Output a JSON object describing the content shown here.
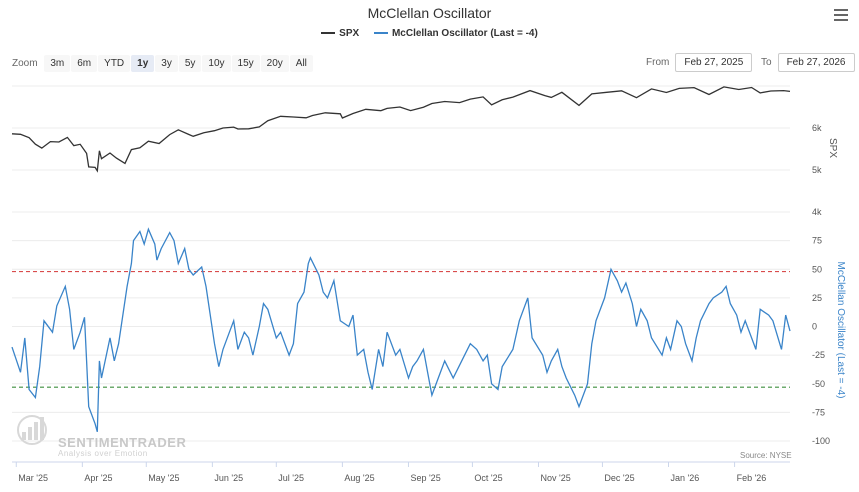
{
  "title": "McClellan Oscillator",
  "legend": {
    "spx_label": "SPX",
    "osc_label": "McClellan Oscillator (Last = -4)"
  },
  "zoom": {
    "label": "Zoom",
    "buttons": [
      "3m",
      "6m",
      "YTD",
      "1y",
      "3y",
      "5y",
      "10y",
      "15y",
      "20y",
      "All"
    ],
    "active": "1y"
  },
  "range": {
    "from_label": "From",
    "from_value": "Feb 27, 2025",
    "to_label": "To",
    "to_value": "Feb 27, 2026"
  },
  "credit": "Source: NYSE",
  "watermark": {
    "name": "SENTIMENTRADER",
    "tagline": "Analysis over Emotion"
  },
  "colors": {
    "spx": "#333333",
    "oscillator": "#3a84c9",
    "overbought": "#d94c4c",
    "oversold": "#3e8f3e"
  },
  "chart_data": [
    {
      "type": "line",
      "name": "SPX",
      "ylabel": "SPX",
      "y_ticks": [
        {
          "v": 4000,
          "label": "4k"
        },
        {
          "v": 5000,
          "label": "5k"
        },
        {
          "v": 6000,
          "label": "6k"
        }
      ],
      "ylim": [
        4000,
        7000
      ],
      "x_ticks": [
        "Mar '25",
        "Apr '25",
        "May '25",
        "Jun '25",
        "Jul '25",
        "Aug '25",
        "Sep '25",
        "Oct '25",
        "Nov '25",
        "Dec '25",
        "Jan '26",
        "Feb '26"
      ],
      "x_range": [
        "2025-02-27",
        "2026-02-27"
      ],
      "points": [
        [
          "2025-02-27",
          5862
        ],
        [
          "2025-03-03",
          5849
        ],
        [
          "2025-03-07",
          5770
        ],
        [
          "2025-03-10",
          5614
        ],
        [
          "2025-03-13",
          5521
        ],
        [
          "2025-03-17",
          5675
        ],
        [
          "2025-03-21",
          5667
        ],
        [
          "2025-03-25",
          5776
        ],
        [
          "2025-03-28",
          5581
        ],
        [
          "2025-03-31",
          5612
        ],
        [
          "2025-04-03",
          5396
        ],
        [
          "2025-04-04",
          5074
        ],
        [
          "2025-04-07",
          5062
        ],
        [
          "2025-04-08",
          4982
        ],
        [
          "2025-04-09",
          5457
        ],
        [
          "2025-04-10",
          5268
        ],
        [
          "2025-04-14",
          5405
        ],
        [
          "2025-04-17",
          5283
        ],
        [
          "2025-04-21",
          5158
        ],
        [
          "2025-04-24",
          5485
        ],
        [
          "2025-04-28",
          5529
        ],
        [
          "2025-05-02",
          5686
        ],
        [
          "2025-05-07",
          5631
        ],
        [
          "2025-05-12",
          5844
        ],
        [
          "2025-05-16",
          5958
        ],
        [
          "2025-05-21",
          5845
        ],
        [
          "2025-05-23",
          5802
        ],
        [
          "2025-05-28",
          5889
        ],
        [
          "2025-06-02",
          5935
        ],
        [
          "2025-06-06",
          6000
        ],
        [
          "2025-06-11",
          6022
        ],
        [
          "2025-06-13",
          5977
        ],
        [
          "2025-06-18",
          5981
        ],
        [
          "2025-06-23",
          6025
        ],
        [
          "2025-06-27",
          6173
        ],
        [
          "2025-07-03",
          6279
        ],
        [
          "2025-07-09",
          6263
        ],
        [
          "2025-07-15",
          6243
        ],
        [
          "2025-07-18",
          6297
        ],
        [
          "2025-07-24",
          6363
        ],
        [
          "2025-07-31",
          6339
        ],
        [
          "2025-08-01",
          6238
        ],
        [
          "2025-08-06",
          6345
        ],
        [
          "2025-08-12",
          6445
        ],
        [
          "2025-08-19",
          6411
        ],
        [
          "2025-08-22",
          6466
        ],
        [
          "2025-08-28",
          6501
        ],
        [
          "2025-09-02",
          6415
        ],
        [
          "2025-09-08",
          6495
        ],
        [
          "2025-09-12",
          6584
        ],
        [
          "2025-09-18",
          6631
        ],
        [
          "2025-09-25",
          6604
        ],
        [
          "2025-09-30",
          6688
        ],
        [
          "2025-10-06",
          6740
        ],
        [
          "2025-10-10",
          6552
        ],
        [
          "2025-10-15",
          6671
        ],
        [
          "2025-10-20",
          6735
        ],
        [
          "2025-10-28",
          6890
        ],
        [
          "2025-11-04",
          6771
        ],
        [
          "2025-11-07",
          6728
        ],
        [
          "2025-11-12",
          6850
        ],
        [
          "2025-11-20",
          6538
        ],
        [
          "2025-11-26",
          6812
        ],
        [
          "2025-12-03",
          6849
        ],
        [
          "2025-12-10",
          6886
        ],
        [
          "2025-12-17",
          6721
        ],
        [
          "2025-12-24",
          6932
        ],
        [
          "2025-12-31",
          6845
        ],
        [
          "2026-01-06",
          6944
        ],
        [
          "2026-01-13",
          6963
        ],
        [
          "2026-01-20",
          6797
        ],
        [
          "2026-01-27",
          6978
        ],
        [
          "2026-02-03",
          6917
        ],
        [
          "2026-02-09",
          6964
        ],
        [
          "2026-02-13",
          6836
        ],
        [
          "2026-02-18",
          6881
        ],
        [
          "2026-02-24",
          6890
        ],
        [
          "2026-02-27",
          6871
        ]
      ]
    },
    {
      "type": "line",
      "name": "McClellan Oscillator",
      "ylabel": "McClellan Oscillator (Last = -4)",
      "y_ticks": [
        {
          "v": -100,
          "label": "-100"
        },
        {
          "v": -75,
          "label": "-75"
        },
        {
          "v": -50,
          "label": "-50"
        },
        {
          "v": -25,
          "label": "-25"
        },
        {
          "v": 0,
          "label": "0"
        },
        {
          "v": 25,
          "label": "25"
        },
        {
          "v": 50,
          "label": "50"
        },
        {
          "v": 75,
          "label": "75"
        }
      ],
      "ylim": [
        -100,
        87
      ],
      "reference_lines": [
        {
          "value": 48,
          "label": "overbought"
        },
        {
          "value": -53,
          "label": "oversold"
        }
      ],
      "points": [
        [
          "2025-02-27",
          -18
        ],
        [
          "2025-03-03",
          -40
        ],
        [
          "2025-03-05",
          -10
        ],
        [
          "2025-03-07",
          -55
        ],
        [
          "2025-03-10",
          -62
        ],
        [
          "2025-03-12",
          -35
        ],
        [
          "2025-03-14",
          5
        ],
        [
          "2025-03-18",
          -5
        ],
        [
          "2025-03-20",
          18
        ],
        [
          "2025-03-24",
          35
        ],
        [
          "2025-03-26",
          15
        ],
        [
          "2025-03-28",
          -20
        ],
        [
          "2025-03-31",
          -5
        ],
        [
          "2025-04-02",
          8
        ],
        [
          "2025-04-03",
          -30
        ],
        [
          "2025-04-04",
          -70
        ],
        [
          "2025-04-07",
          -85
        ],
        [
          "2025-04-08",
          -92
        ],
        [
          "2025-04-09",
          -30
        ],
        [
          "2025-04-10",
          -45
        ],
        [
          "2025-04-14",
          -10
        ],
        [
          "2025-04-16",
          -30
        ],
        [
          "2025-04-18",
          -15
        ],
        [
          "2025-04-22",
          35
        ],
        [
          "2025-04-24",
          55
        ],
        [
          "2025-04-25",
          75
        ],
        [
          "2025-04-28",
          83
        ],
        [
          "2025-04-30",
          72
        ],
        [
          "2025-05-02",
          85
        ],
        [
          "2025-05-05",
          72
        ],
        [
          "2025-05-06",
          58
        ],
        [
          "2025-05-08",
          68
        ],
        [
          "2025-05-12",
          82
        ],
        [
          "2025-05-14",
          75
        ],
        [
          "2025-05-16",
          55
        ],
        [
          "2025-05-19",
          68
        ],
        [
          "2025-05-21",
          50
        ],
        [
          "2025-05-23",
          45
        ],
        [
          "2025-05-27",
          52
        ],
        [
          "2025-05-29",
          35
        ],
        [
          "2025-06-02",
          -15
        ],
        [
          "2025-06-04",
          -35
        ],
        [
          "2025-06-06",
          -20
        ],
        [
          "2025-06-09",
          -5
        ],
        [
          "2025-06-11",
          5
        ],
        [
          "2025-06-13",
          -20
        ],
        [
          "2025-06-16",
          -5
        ],
        [
          "2025-06-18",
          -10
        ],
        [
          "2025-06-20",
          -25
        ],
        [
          "2025-06-23",
          0
        ],
        [
          "2025-06-25",
          20
        ],
        [
          "2025-06-27",
          15
        ],
        [
          "2025-07-01",
          -10
        ],
        [
          "2025-07-03",
          -5
        ],
        [
          "2025-07-07",
          -25
        ],
        [
          "2025-07-09",
          -15
        ],
        [
          "2025-07-11",
          20
        ],
        [
          "2025-07-14",
          30
        ],
        [
          "2025-07-16",
          55
        ],
        [
          "2025-07-17",
          60
        ],
        [
          "2025-07-21",
          45
        ],
        [
          "2025-07-23",
          30
        ],
        [
          "2025-07-25",
          25
        ],
        [
          "2025-07-28",
          40
        ],
        [
          "2025-07-31",
          5
        ],
        [
          "2025-08-04",
          0
        ],
        [
          "2025-08-06",
          10
        ],
        [
          "2025-08-08",
          -25
        ],
        [
          "2025-08-11",
          -20
        ],
        [
          "2025-08-13",
          -40
        ],
        [
          "2025-08-15",
          -55
        ],
        [
          "2025-08-18",
          -20
        ],
        [
          "2025-08-20",
          -35
        ],
        [
          "2025-08-22",
          -5
        ],
        [
          "2025-08-26",
          -25
        ],
        [
          "2025-08-28",
          -20
        ],
        [
          "2025-09-01",
          -45
        ],
        [
          "2025-09-03",
          -35
        ],
        [
          "2025-09-05",
          -30
        ],
        [
          "2025-09-08",
          -20
        ],
        [
          "2025-09-10",
          -40
        ],
        [
          "2025-09-12",
          -60
        ],
        [
          "2025-09-15",
          -45
        ],
        [
          "2025-09-18",
          -30
        ],
        [
          "2025-09-22",
          -45
        ],
        [
          "2025-09-26",
          -30
        ],
        [
          "2025-09-30",
          -15
        ],
        [
          "2025-10-03",
          -20
        ],
        [
          "2025-10-06",
          -30
        ],
        [
          "2025-10-08",
          -25
        ],
        [
          "2025-10-10",
          -50
        ],
        [
          "2025-10-13",
          -55
        ],
        [
          "2025-10-15",
          -35
        ],
        [
          "2025-10-20",
          -20
        ],
        [
          "2025-10-23",
          5
        ],
        [
          "2025-10-27",
          25
        ],
        [
          "2025-10-29",
          -10
        ],
        [
          "2025-11-03",
          -25
        ],
        [
          "2025-11-05",
          -40
        ],
        [
          "2025-11-07",
          -30
        ],
        [
          "2025-11-10",
          -20
        ],
        [
          "2025-11-12",
          -35
        ],
        [
          "2025-11-14",
          -45
        ],
        [
          "2025-11-18",
          -60
        ],
        [
          "2025-11-20",
          -70
        ],
        [
          "2025-11-24",
          -50
        ],
        [
          "2025-11-26",
          -15
        ],
        [
          "2025-11-28",
          5
        ],
        [
          "2025-12-02",
          25
        ],
        [
          "2025-12-05",
          50
        ],
        [
          "2025-12-08",
          40
        ],
        [
          "2025-12-10",
          30
        ],
        [
          "2025-12-12",
          38
        ],
        [
          "2025-12-15",
          20
        ],
        [
          "2025-12-17",
          0
        ],
        [
          "2025-12-19",
          15
        ],
        [
          "2025-12-22",
          5
        ],
        [
          "2025-12-24",
          -10
        ],
        [
          "2025-12-29",
          -25
        ],
        [
          "2025-12-31",
          -10
        ],
        [
          "2026-01-02",
          -20
        ],
        [
          "2026-01-05",
          5
        ],
        [
          "2026-01-07",
          0
        ],
        [
          "2026-01-09",
          -15
        ],
        [
          "2026-01-12",
          -30
        ],
        [
          "2026-01-14",
          -10
        ],
        [
          "2026-01-16",
          5
        ],
        [
          "2026-01-20",
          20
        ],
        [
          "2026-01-22",
          25
        ],
        [
          "2026-01-26",
          30
        ],
        [
          "2026-01-28",
          35
        ],
        [
          "2026-01-30",
          20
        ],
        [
          "2026-02-02",
          10
        ],
        [
          "2026-02-04",
          -5
        ],
        [
          "2026-02-06",
          5
        ],
        [
          "2026-02-09",
          -10
        ],
        [
          "2026-02-11",
          -20
        ],
        [
          "2026-02-13",
          15
        ],
        [
          "2026-02-17",
          10
        ],
        [
          "2026-02-19",
          5
        ],
        [
          "2026-02-23",
          -20
        ],
        [
          "2026-02-25",
          10
        ],
        [
          "2026-02-27",
          -4
        ]
      ]
    }
  ]
}
